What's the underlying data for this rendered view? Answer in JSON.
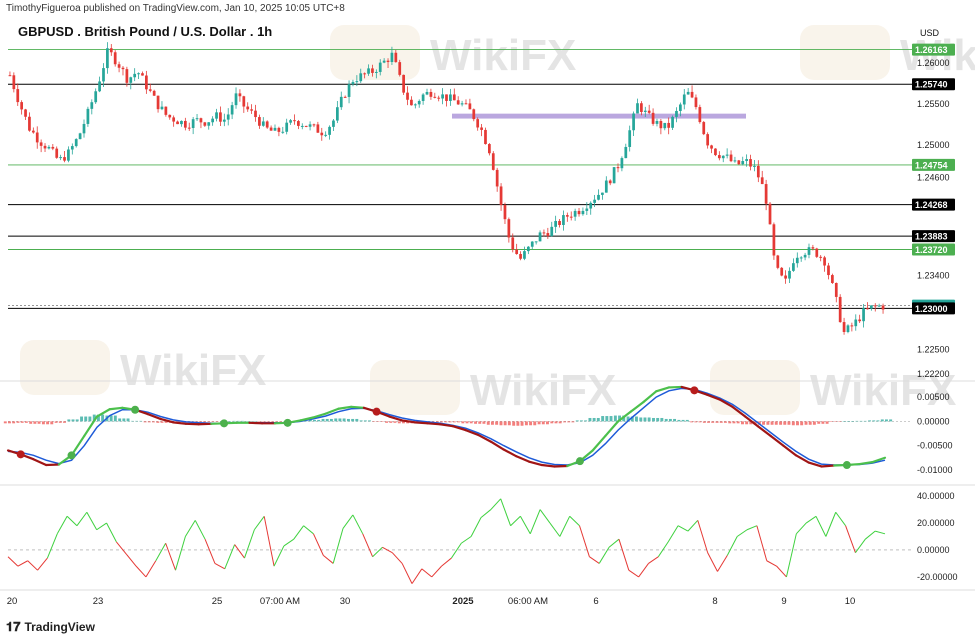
{
  "header": {
    "published": "TimothyFigueroa published on TradingView.com, Jan 10, 2025 10:05 UTC+8",
    "symbol_title": "GBPUSD . British Pound / U.S. Dollar . 1h",
    "currency": "USD"
  },
  "footer": {
    "brand": "TradingView",
    "logo": "tradingview-logo-icon"
  },
  "watermark": {
    "text": "WikiFX"
  },
  "chart_data": [
    {
      "type": "candlestick",
      "title": "GBPUSD . British Pound / U.S. Dollar . 1h",
      "y_ticks": [
        1.26,
        1.255,
        1.25,
        1.246,
        1.234,
        1.225,
        1.222
      ],
      "y_tick_labels": [
        "1.26000",
        "1.25500",
        "1.25000",
        "1.24600",
        "1.23400",
        "1.22500",
        "1.22200"
      ],
      "ylim": [
        1.2215,
        1.2628
      ],
      "horizontal_levels": [
        {
          "value": 1.26163,
          "label": "1.26163",
          "color": "#4caf50"
        },
        {
          "value": 1.2574,
          "label": "1.25740",
          "color": "#000000"
        },
        {
          "value": 1.24754,
          "label": "1.24754",
          "color": "#4caf50"
        },
        {
          "value": 1.24268,
          "label": "1.24268",
          "color": "#000000"
        },
        {
          "value": 1.23883,
          "label": "1.23883",
          "color": "#000000"
        },
        {
          "value": 1.2372,
          "label": "1.23720",
          "color": "#4caf50"
        },
        {
          "value": 1.23034,
          "label": "1.23034",
          "color": "#26a69a"
        },
        {
          "value": 1.23,
          "label": "1.23000",
          "color": "#000000"
        }
      ],
      "zone": {
        "from": 1.2532,
        "to": 1.2538,
        "color": "#b39ddb"
      },
      "x_labels": [
        "20",
        "23",
        "25",
        "07:00 AM",
        "30",
        "2025",
        "06:00 AM",
        "6",
        "8",
        "9",
        "10"
      ],
      "price_path": [
        1.2585,
        1.255,
        1.252,
        1.2505,
        1.2495,
        1.248,
        1.249,
        1.251,
        1.254,
        1.2575,
        1.2615,
        1.26,
        1.258,
        1.259,
        1.257,
        1.255,
        1.2535,
        1.253,
        1.2525,
        1.253,
        1.2528,
        1.2535,
        1.253,
        1.256,
        1.2545,
        1.2535,
        1.252,
        1.2515,
        1.252,
        1.253,
        1.2525,
        1.252,
        1.2515,
        1.253,
        1.256,
        1.258,
        1.2585,
        1.259,
        1.26,
        1.261,
        1.257,
        1.2545,
        1.256,
        1.2565,
        1.256,
        1.2555,
        1.255,
        1.254,
        1.252,
        1.249,
        1.243,
        1.238,
        1.236,
        1.2375,
        1.239,
        1.2395,
        1.2405,
        1.2415,
        1.242,
        1.243,
        1.244,
        1.2455,
        1.2475,
        1.251,
        1.255,
        1.2535,
        1.2525,
        1.252,
        1.254,
        1.2565,
        1.2545,
        1.2505,
        1.249,
        1.2485,
        1.2475,
        1.248,
        1.247,
        1.244,
        1.235,
        1.233,
        1.2365,
        1.237,
        1.237,
        1.236,
        1.232,
        1.227,
        1.228,
        1.2295,
        1.2302,
        1.2303
      ]
    },
    {
      "type": "macd",
      "y_ticks": [
        0.005,
        0,
        -0.005,
        -0.01
      ],
      "y_tick_labels": [
        "0.00500",
        "0.00000",
        "-0.00500",
        "-0.01000"
      ],
      "ylim": [
        -0.0125,
        0.0075
      ],
      "macd": [
        -0.006,
        -0.0068,
        -0.0078,
        -0.009,
        -0.0089,
        -0.007,
        -0.003,
        0.001,
        0.0025,
        0.0028,
        0.0024,
        0.0015,
        0.0005,
        -0.0002,
        -0.0005,
        -0.0006,
        -0.0005,
        -0.0004,
        -0.0003,
        -0.0003,
        -0.0004,
        -0.0004,
        -0.0003,
        0.0002,
        0.0008,
        0.0016,
        0.0026,
        0.003,
        0.0028,
        0.002,
        0.001,
        0.0002,
        -0.0002,
        -0.0004,
        -0.0006,
        -0.001,
        -0.0018,
        -0.0028,
        -0.0042,
        -0.0058,
        -0.0072,
        -0.0083,
        -0.009,
        -0.0093,
        -0.0092,
        -0.0082,
        -0.006,
        -0.003,
        0.0,
        0.002,
        0.004,
        0.0062,
        0.007,
        0.0071,
        0.0064,
        0.0055,
        0.0045,
        0.003,
        0.001,
        -0.001,
        -0.003,
        -0.005,
        -0.007,
        -0.0085,
        -0.0093,
        -0.0091,
        -0.009,
        -0.0088,
        -0.0084,
        -0.0075
      ],
      "signal": [
        -0.0062,
        -0.0064,
        -0.007,
        -0.008,
        -0.0087,
        -0.008,
        -0.005,
        -0.0012,
        0.0012,
        0.0024,
        0.0024,
        0.0019,
        0.001,
        0.0003,
        -0.0001,
        -0.0003,
        -0.0004,
        -0.0004,
        -0.0003,
        -0.0003,
        -0.0003,
        -0.0003,
        -0.0003,
        0.0,
        0.0005,
        0.0011,
        0.002,
        0.0026,
        0.0027,
        0.0022,
        0.0014,
        0.0007,
        0.0002,
        -0.0001,
        -0.0004,
        -0.0008,
        -0.0014,
        -0.0024,
        -0.0036,
        -0.005,
        -0.0063,
        -0.0075,
        -0.0084,
        -0.0089,
        -0.009,
        -0.0085,
        -0.007,
        -0.0046,
        -0.0018,
        0.0006,
        0.0028,
        0.005,
        0.0063,
        0.0068,
        0.0066,
        0.0058,
        0.0048,
        0.0035,
        0.0017,
        -0.0003,
        -0.0023,
        -0.0043,
        -0.0062,
        -0.0078,
        -0.0088,
        -0.009,
        -0.009,
        -0.0089,
        -0.0086,
        -0.008
      ],
      "histogram": [
        -0.0004,
        -0.0003,
        -0.0005,
        -0.0006,
        -0.0003,
        0.0004,
        0.001,
        0.0014,
        0.0012,
        0.0006,
        0.0001,
        -0.0002,
        -0.0003,
        -0.0003,
        -0.0002,
        -0.0002,
        -0.0001,
        0.0,
        0.0001,
        0.0,
        -0.0001,
        -0.0001,
        0.0,
        0.0001,
        0.0003,
        0.0005,
        0.0006,
        0.0005,
        0.0002,
        -0.0001,
        -0.0003,
        -0.0004,
        -0.0004,
        -0.0003,
        -0.0002,
        -0.0002,
        -0.0004,
        -0.0005,
        -0.0007,
        -0.0008,
        -0.0009,
        -0.0008,
        -0.0006,
        -0.0004,
        -0.0002,
        0.0002,
        0.0007,
        0.0011,
        0.0012,
        0.001,
        0.0008,
        0.0007,
        0.0005,
        0.0003,
        -0.0002,
        -0.0003,
        -0.0003,
        -0.0004,
        -0.0006,
        -0.0007,
        -0.0007,
        -0.0007,
        -0.0008,
        -0.0007,
        -0.0005,
        -0.0001,
        0.0,
        0.0001,
        0.0002,
        0.0004
      ]
    },
    {
      "type": "line",
      "y_ticks": [
        40,
        20,
        0,
        -20
      ],
      "y_tick_labels": [
        "40.00000",
        "20.00000",
        "0.00000",
        "-20.00000"
      ],
      "ylim": [
        -26,
        46
      ],
      "values": [
        -5,
        -12,
        -8,
        -15,
        -6,
        12,
        25,
        18,
        28,
        15,
        20,
        6,
        -3,
        -12,
        -20,
        -8,
        5,
        -15,
        10,
        22,
        8,
        -10,
        -14,
        4,
        -6,
        15,
        25,
        -12,
        3,
        8,
        18,
        12,
        -4,
        -10,
        16,
        26,
        12,
        -5,
        2,
        -2,
        -10,
        -25,
        -14,
        -20,
        -12,
        -6,
        5,
        10,
        24,
        30,
        38,
        18,
        25,
        12,
        30,
        20,
        10,
        25,
        18,
        -5,
        -10,
        2,
        8,
        -15,
        -20,
        -10,
        -5,
        6,
        18,
        14,
        22,
        -2,
        -16,
        -4,
        10,
        15,
        18,
        -8,
        -12,
        -20,
        12,
        20,
        25,
        10,
        28,
        18,
        -2,
        8,
        14,
        12
      ]
    }
  ]
}
